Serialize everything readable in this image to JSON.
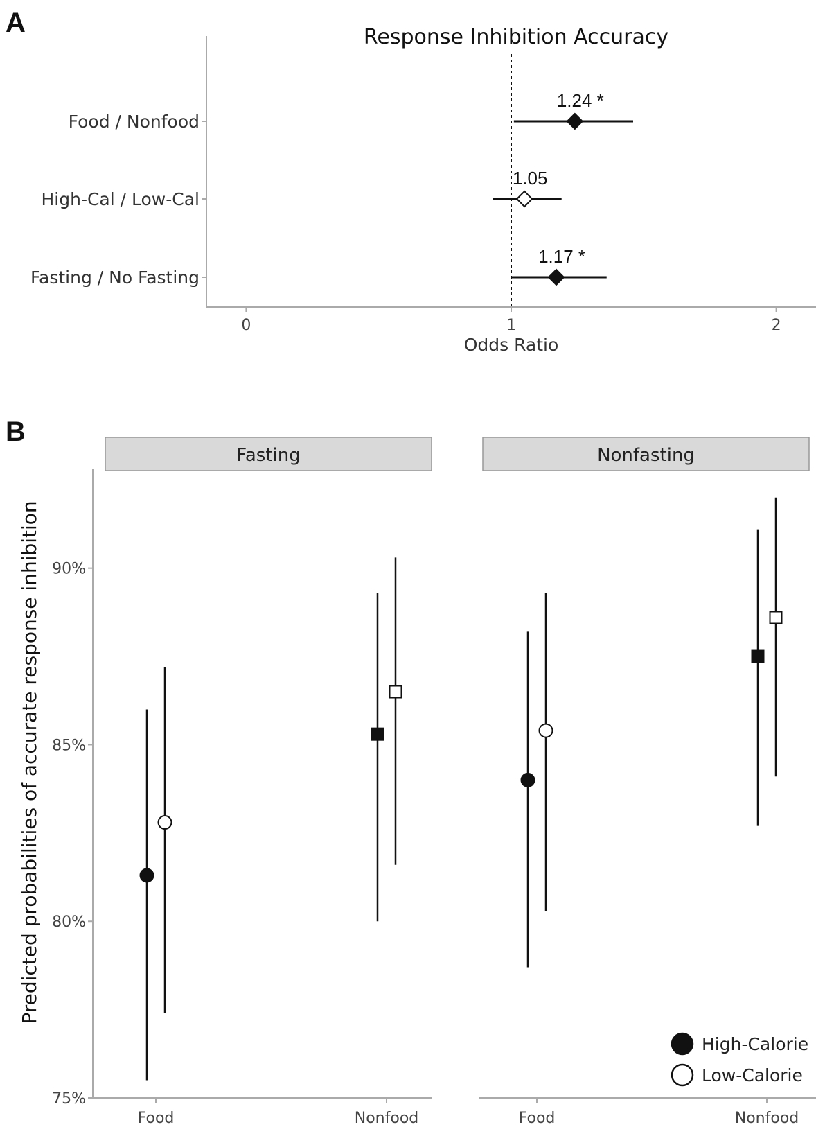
{
  "chart_data": [
    {
      "panel": "A",
      "type": "scatter",
      "title": "Response Inhibition Accuracy",
      "xlabel": "Odds Ratio",
      "ylabel": "",
      "xlim": [
        -0.15,
        2.15
      ],
      "xticks": [
        "0",
        "1",
        "2"
      ],
      "reference_line": 1,
      "rows": [
        {
          "label": "Food / Nonfood",
          "value": 1.24,
          "ci": [
            1.01,
            1.46
          ],
          "label_text": "1.24 *",
          "filled": true
        },
        {
          "label": "High-Cal / Low-Cal",
          "value": 1.05,
          "ci": [
            0.93,
            1.19
          ],
          "label_text": "1.05",
          "filled": false
        },
        {
          "label": "Fasting / No Fasting",
          "value": 1.17,
          "ci": [
            1.0,
            1.36
          ],
          "label_text": "1.17 *",
          "filled": true
        }
      ]
    },
    {
      "panel": "B",
      "type": "scatter",
      "ylabel": "Predicted probabilities of accurate response inhibition",
      "ylim": [
        75,
        92.8
      ],
      "yticks": [
        "75%",
        "80%",
        "85%",
        "90%"
      ],
      "facets": [
        {
          "label": "Fasting",
          "categories": [
            "Food",
            "Nonfood"
          ],
          "series": [
            {
              "name": "High-Calorie",
              "values": [
                81.3,
                85.3
              ],
              "lower": [
                75.5,
                80.0
              ],
              "upper": [
                86.0,
                89.3
              ]
            },
            {
              "name": "Low-Calorie",
              "values": [
                82.8,
                86.5
              ],
              "lower": [
                77.4,
                81.6
              ],
              "upper": [
                87.2,
                90.3
              ]
            }
          ]
        },
        {
          "label": "Nonfasting",
          "categories": [
            "Food",
            "Nonfood"
          ],
          "series": [
            {
              "name": "High-Calorie",
              "values": [
                84.0,
                87.5
              ],
              "lower": [
                78.7,
                82.7
              ],
              "upper": [
                88.2,
                91.1
              ]
            },
            {
              "name": "Low-Calorie",
              "values": [
                85.4,
                88.6
              ],
              "lower": [
                80.3,
                84.1
              ],
              "upper": [
                89.3,
                92.0
              ]
            }
          ]
        }
      ],
      "legend": {
        "placement": "bottom-right",
        "items": [
          "High-Calorie",
          "Low-Calorie"
        ]
      }
    }
  ]
}
